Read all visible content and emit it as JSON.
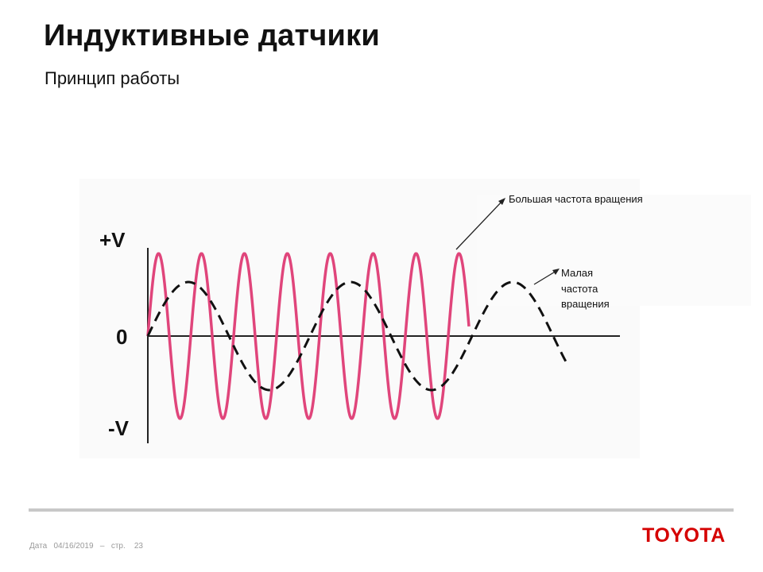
{
  "slide": {
    "title": "Индуктивные датчики",
    "subtitle": "Принцип работы"
  },
  "diagram": {
    "axis_labels": {
      "positive": "+V",
      "zero": "0",
      "negative": "-V"
    },
    "annotations": {
      "high_speed": "Большая частота вращения",
      "low_speed_lines": [
        "Малая",
        "частота",
        "вращения"
      ]
    },
    "colors": {
      "high_speed_wave": "#e0457b",
      "low_speed_wave": "#111111",
      "axis": "#222222"
    }
  },
  "footer": {
    "date_label": "Дата",
    "date": "04/16/2019",
    "separator": "–",
    "page_label": "стр.",
    "page": "23",
    "brand": "TOYOTA"
  }
}
